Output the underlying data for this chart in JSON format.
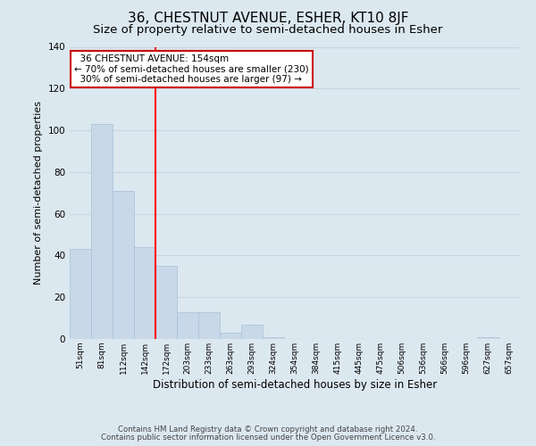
{
  "title": "36, CHESTNUT AVENUE, ESHER, KT10 8JF",
  "subtitle": "Size of property relative to semi-detached houses in Esher",
  "xlabel": "Distribution of semi-detached houses by size in Esher",
  "ylabel": "Number of semi-detached properties",
  "bar_labels": [
    "51sqm",
    "81sqm",
    "112sqm",
    "142sqm",
    "172sqm",
    "203sqm",
    "233sqm",
    "263sqm",
    "293sqm",
    "324sqm",
    "354sqm",
    "384sqm",
    "415sqm",
    "445sqm",
    "475sqm",
    "506sqm",
    "536sqm",
    "566sqm",
    "596sqm",
    "627sqm",
    "657sqm"
  ],
  "bar_heights": [
    43,
    103,
    71,
    44,
    35,
    13,
    13,
    3,
    7,
    1,
    0,
    0,
    0,
    0,
    0,
    0,
    0,
    0,
    0,
    1,
    0
  ],
  "bar_color": "#c8d8e8",
  "bar_edge_color": "#a8c0d8",
  "grid_color": "#c8d4e0",
  "background_color": "#dce8f0",
  "red_line_x": 3.5,
  "annotation_title": "36 CHESTNUT AVENUE: 154sqm",
  "annotation_line1": "← 70% of semi-detached houses are smaller (230)",
  "annotation_line2": "30% of semi-detached houses are larger (97) →",
  "annotation_box_color": "#ffffff",
  "annotation_border_color": "#cc0000",
  "ylim": [
    0,
    140
  ],
  "yticks": [
    0,
    20,
    40,
    60,
    80,
    100,
    120,
    140
  ],
  "footer_line1": "Contains HM Land Registry data © Crown copyright and database right 2024.",
  "footer_line2": "Contains public sector information licensed under the Open Government Licence v3.0.",
  "title_fontsize": 11,
  "subtitle_fontsize": 9.5
}
